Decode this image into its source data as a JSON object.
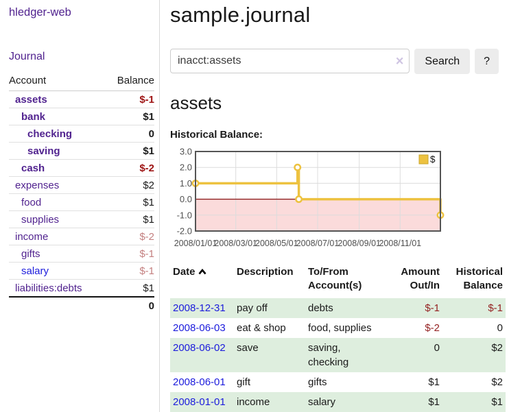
{
  "sidebar": {
    "app_title": "hledger-web",
    "journal_label": "Journal",
    "accounts": {
      "headers": {
        "account": "Account",
        "balance": "Balance"
      },
      "rows": [
        {
          "name": "assets",
          "indent": 1,
          "bold": true,
          "link_color": "purple",
          "balance": "$-1",
          "balance_tone": "negative"
        },
        {
          "name": "bank",
          "indent": 2,
          "bold": true,
          "link_color": "purple",
          "balance": "$1",
          "balance_tone": "normal"
        },
        {
          "name": "checking",
          "indent": 3,
          "bold": true,
          "link_color": "purple",
          "balance": "0",
          "balance_tone": "normal"
        },
        {
          "name": "saving",
          "indent": 3,
          "bold": true,
          "link_color": "purple",
          "balance": "$1",
          "balance_tone": "normal"
        },
        {
          "name": "cash",
          "indent": 2,
          "bold": true,
          "link_color": "purple",
          "balance": "$-2",
          "balance_tone": "negative"
        },
        {
          "name": "expenses",
          "indent": 1,
          "bold": false,
          "link_color": "purple",
          "balance": "$2",
          "balance_tone": "normal"
        },
        {
          "name": "food",
          "indent": 2,
          "bold": false,
          "link_color": "purple",
          "balance": "$1",
          "balance_tone": "normal"
        },
        {
          "name": "supplies",
          "indent": 2,
          "bold": false,
          "link_color": "purple",
          "balance": "$1",
          "balance_tone": "normal"
        },
        {
          "name": "income",
          "indent": 1,
          "bold": false,
          "link_color": "purple",
          "balance": "$-2",
          "balance_tone": "negative-soft"
        },
        {
          "name": "gifts",
          "indent": 2,
          "bold": false,
          "link_color": "purple",
          "balance": "$-1",
          "balance_tone": "negative-soft"
        },
        {
          "name": "salary",
          "indent": 2,
          "bold": false,
          "link_color": "blue",
          "balance": "$-1",
          "balance_tone": "negative-soft"
        },
        {
          "name": "liabilities:debts",
          "indent": 1,
          "bold": false,
          "link_color": "purple",
          "balance": "$1",
          "balance_tone": "normal"
        }
      ],
      "total": "0"
    }
  },
  "main": {
    "page_title": "sample.journal",
    "search": {
      "value": "inacct:assets",
      "clear_icon": "×",
      "search_button": "Search",
      "help_button": "?"
    },
    "section_title": "assets",
    "chart_label": "Historical Balance:",
    "register": {
      "headers": {
        "date": "Date",
        "description": "Description",
        "accounts": "To/From Account(s)",
        "amount": "Amount Out/In",
        "balance": "Historical Balance"
      },
      "rows": [
        {
          "date": "2008-12-31",
          "description": "pay off",
          "accounts": "debts",
          "amount": "$-1",
          "balance": "$-1"
        },
        {
          "date": "2008-06-03",
          "description": "eat & shop",
          "accounts": "food, supplies",
          "amount": "$-2",
          "balance": "0"
        },
        {
          "date": "2008-06-02",
          "description": "save",
          "accounts": "saving, checking",
          "amount": "0",
          "balance": "$2"
        },
        {
          "date": "2008-06-01",
          "description": "gift",
          "accounts": "gifts",
          "amount": "$1",
          "balance": "$2"
        },
        {
          "date": "2008-01-01",
          "description": "income",
          "accounts": "salary",
          "amount": "$1",
          "balance": "$1"
        }
      ]
    }
  },
  "chart_data": {
    "type": "line",
    "subtype": "step-after",
    "title": "Historical Balance",
    "series": [
      {
        "name": "$",
        "color": "#edc240",
        "points": [
          {
            "date": "2008/01/01",
            "value": 1.0
          },
          {
            "date": "2008/06/01",
            "value": 2.0
          },
          {
            "date": "2008/06/03",
            "value": 0.0
          },
          {
            "date": "2008/12/31",
            "value": -1.0
          }
        ]
      }
    ],
    "x_range": [
      "2008/01/01",
      "2008/12/31"
    ],
    "x_ticks": [
      "2008/01/01",
      "2008/03/01",
      "2008/05/01",
      "2008/07/01",
      "2008/09/01",
      "2008/11/01"
    ],
    "y_ticks": [
      3.0,
      2.0,
      1.0,
      0.0,
      -1.0,
      -2.0
    ],
    "ylim": [
      -2.0,
      3.0
    ],
    "grid": true,
    "legend": {
      "label": "$",
      "position": "top-right"
    },
    "negative_region_color": "#fbdbdb",
    "zero_line_color": "#8e1f1f",
    "border_color": "#545454",
    "grid_color": "#dcdcdc"
  }
}
